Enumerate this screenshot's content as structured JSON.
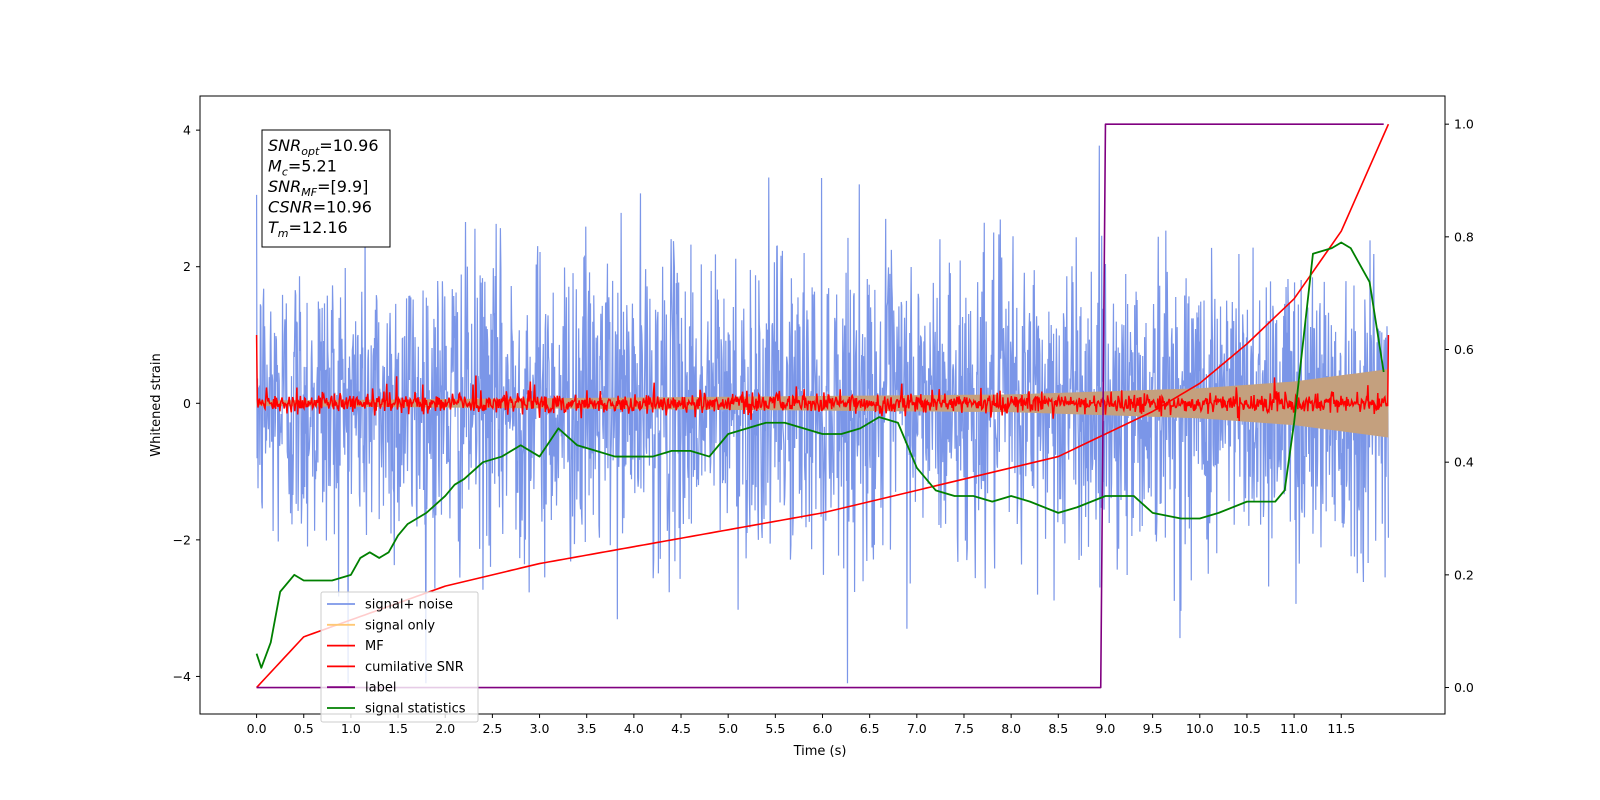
{
  "chart_data": {
    "type": "line",
    "title": "",
    "xlabel": "Time (s)",
    "ylabel": "Whitened strain",
    "ylabel_right": "",
    "xlim": [
      -0.6,
      12.6
    ],
    "ylim": [
      -4.55,
      4.5
    ],
    "ylim_right": [
      -0.047,
      1.05
    ],
    "grid": false,
    "legend_position": "lower-left",
    "x_ticks": [
      0.0,
      0.5,
      1.0,
      1.5,
      2.0,
      2.5,
      3.0,
      3.5,
      4.0,
      4.5,
      5.0,
      5.5,
      6.0,
      6.5,
      7.0,
      7.5,
      8.0,
      8.5,
      9.0,
      9.5,
      10.0,
      10.5,
      11.0,
      11.5
    ],
    "x_tick_labels": [
      "0.0",
      "0.5",
      "1.0",
      "1.5",
      "2.0",
      "2.5",
      "3.0",
      "3.5",
      "4.0",
      "4.5",
      "5.0",
      "5.5",
      "6.0",
      "6.5",
      "7.0",
      "7.5",
      "8.0",
      "8.5",
      "9.0",
      "9.5",
      "10.0",
      "10.5",
      "11.0",
      "11.5"
    ],
    "y_ticks": [
      -4,
      -2,
      0,
      2,
      4
    ],
    "y_tick_labels": [
      "−4",
      "−2",
      "0",
      "2",
      "4"
    ],
    "y_right_ticks": [
      0.0,
      0.2,
      0.4,
      0.6,
      0.8,
      1.0
    ],
    "y_right_tick_labels": [
      "0.0",
      "0.2",
      "0.4",
      "0.6",
      "0.8",
      "1.0"
    ],
    "series": [
      {
        "name": "signal+ noise",
        "axis": "left",
        "color": "#7b96e8",
        "kind": "noise",
        "x_range": [
          0,
          12.0
        ],
        "typical_amplitude": 1.1,
        "extreme_range": [
          -4.1,
          4.0
        ]
      },
      {
        "name": "signal only",
        "axis": "left",
        "color": "#ffc875",
        "kind": "chirp-envelope",
        "x_range": [
          0,
          12.0
        ],
        "amplitude_at": {
          "x": [
            0,
            8.0,
            10.0,
            11.0,
            12.0
          ],
          "y": [
            0.04,
            0.13,
            0.22,
            0.32,
            0.5
          ]
        }
      },
      {
        "name": "MF",
        "axis": "left",
        "color": "#ff0000",
        "kind": "noise-small",
        "x_range": [
          0,
          12.0
        ],
        "start_value": 1.0,
        "typical_amplitude": 0.12
      },
      {
        "name": "cumilative SNR",
        "axis": "right",
        "color": "#ff0000",
        "x": [
          0.0,
          0.5,
          1.0,
          1.5,
          2.0,
          3.0,
          4.0,
          5.0,
          6.0,
          7.0,
          8.0,
          8.5,
          9.0,
          9.5,
          10.0,
          10.5,
          11.0,
          11.5,
          12.0
        ],
        "y": [
          0.0,
          0.09,
          0.12,
          0.15,
          0.18,
          0.22,
          0.25,
          0.28,
          0.31,
          0.35,
          0.39,
          0.41,
          0.45,
          0.49,
          0.54,
          0.61,
          0.69,
          0.81,
          1.0
        ]
      },
      {
        "name": "label",
        "axis": "right",
        "color": "#800080",
        "x": [
          0.0,
          8.95,
          9.0,
          11.95
        ],
        "y": [
          0.0,
          0.0,
          1.0,
          1.0
        ]
      },
      {
        "name": "signal statistics",
        "axis": "right",
        "color": "#008000",
        "x": [
          0.0,
          0.05,
          0.15,
          0.25,
          0.4,
          0.5,
          0.6,
          0.8,
          1.0,
          1.1,
          1.2,
          1.3,
          1.4,
          1.5,
          1.6,
          1.8,
          2.0,
          2.1,
          2.2,
          2.4,
          2.6,
          2.8,
          3.0,
          3.2,
          3.4,
          3.6,
          3.8,
          4.0,
          4.2,
          4.4,
          4.6,
          4.8,
          5.0,
          5.2,
          5.4,
          5.6,
          5.8,
          6.0,
          6.2,
          6.4,
          6.6,
          6.8,
          7.0,
          7.2,
          7.4,
          7.6,
          7.8,
          8.0,
          8.2,
          8.5,
          8.7,
          9.0,
          9.3,
          9.5,
          9.8,
          10.0,
          10.2,
          10.5,
          10.8,
          10.9,
          11.0,
          11.2,
          11.4,
          11.5,
          11.6,
          11.8,
          11.95
        ],
        "y": [
          0.06,
          0.035,
          0.08,
          0.17,
          0.2,
          0.19,
          0.19,
          0.19,
          0.2,
          0.23,
          0.24,
          0.23,
          0.24,
          0.27,
          0.29,
          0.31,
          0.34,
          0.36,
          0.37,
          0.4,
          0.41,
          0.43,
          0.41,
          0.46,
          0.43,
          0.42,
          0.41,
          0.41,
          0.41,
          0.42,
          0.42,
          0.41,
          0.45,
          0.46,
          0.47,
          0.47,
          0.46,
          0.45,
          0.45,
          0.46,
          0.48,
          0.47,
          0.39,
          0.35,
          0.34,
          0.34,
          0.33,
          0.34,
          0.33,
          0.31,
          0.32,
          0.34,
          0.34,
          0.31,
          0.3,
          0.3,
          0.31,
          0.33,
          0.33,
          0.35,
          0.47,
          0.77,
          0.78,
          0.79,
          0.78,
          0.72,
          0.56
        ]
      }
    ]
  },
  "annotation": {
    "lines": [
      {
        "base": "SNR",
        "sub": "opt",
        "rest": "=10.96"
      },
      {
        "base": "M",
        "sub": "c",
        "rest": "=5.21"
      },
      {
        "base": "SNR",
        "sub": "MF",
        "rest": "=[9.9]"
      },
      {
        "base": "CSNR",
        "sub": "",
        "rest": "=10.96"
      },
      {
        "base": "T",
        "sub": "m",
        "rest": "=12.16"
      }
    ]
  },
  "legend": {
    "entries": [
      {
        "label": "signal+ noise",
        "color": "#7b96e8"
      },
      {
        "label": "signal only",
        "color": "#ffc875"
      },
      {
        "label": "MF",
        "color": "#ff0000"
      },
      {
        "label": "cumilative SNR",
        "color": "#ff0000"
      },
      {
        "label": "label",
        "color": "#800080"
      },
      {
        "label": "signal statistics",
        "color": "#008000"
      }
    ]
  }
}
